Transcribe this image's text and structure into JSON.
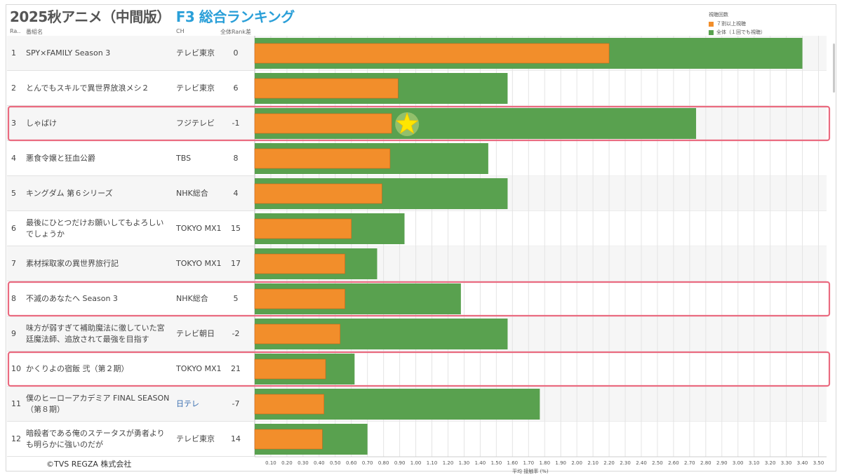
{
  "title": {
    "main": "2025秋アニメ（中間版）",
    "sub": "F3 総合ランキング"
  },
  "headers": {
    "rank": "Ra..",
    "name": "番組名",
    "ch": "CH",
    "diff": "全体Rank差"
  },
  "legend": {
    "title": "視聴回数",
    "items": [
      {
        "label": "７割以上視聴",
        "color": "#f28e2b"
      },
      {
        "label": "全体（１回でも視聴）",
        "color": "#59a14f"
      }
    ]
  },
  "copyright": "©TVS REGZA 株式会社",
  "chart_data": {
    "type": "bar",
    "title": "2025秋アニメ（中間版） F3 総合ランキング",
    "xlabel": "平均 接触率 (%)",
    "ylabel": "番組名",
    "xlim": [
      0,
      3.55
    ],
    "ticks": [
      "0.10",
      "0.20",
      "0.30",
      "0.40",
      "0.50",
      "0.60",
      "0.70",
      "0.80",
      "0.90",
      "1.00",
      "1.10",
      "1.20",
      "1.30",
      "1.40",
      "1.50",
      "1.60",
      "1.70",
      "1.80",
      "1.90",
      "2.00",
      "2.10",
      "2.20",
      "2.30",
      "2.40",
      "2.50",
      "2.60",
      "2.70",
      "2.80",
      "2.90",
      "3.00",
      "3.10",
      "3.20",
      "3.30",
      "3.40",
      "3.50"
    ],
    "categories": [
      "SPY×FAMILY Season 3",
      "とんでもスキルで異世界放浪メシ２",
      "しゃばけ",
      "悪食令嬢と狂血公爵",
      "キングダム 第６シリーズ",
      "最後にひとつだけお願いしてもよろしいでしょうか",
      "素材採取家の異世界旅行記",
      "不滅のあなたへ Season 3",
      "味方が弱すぎて補助魔法に徹していた宮廷魔法師、追放されて最強を目指す",
      "かくりよの宿飯 弐（第２期）",
      "僕のヒーローアカデミア FINAL SEASON（第８期）",
      "暗殺者である俺のステータスが勇者よりも明らかに強いのだが"
    ],
    "series": [
      {
        "name": "全体（１回でも視聴）",
        "color": "#59a14f",
        "values": [
          3.4,
          1.57,
          2.74,
          1.45,
          1.57,
          0.93,
          0.76,
          1.28,
          1.57,
          0.62,
          1.77,
          0.7
        ]
      },
      {
        "name": "７割以上視聴",
        "color": "#f28e2b",
        "values": [
          2.2,
          0.89,
          0.85,
          0.84,
          0.79,
          0.6,
          0.56,
          0.56,
          0.53,
          0.44,
          0.43,
          0.42
        ]
      }
    ],
    "annotations": {
      "star_row": 3,
      "highlight_rows": [
        3,
        8,
        10
      ]
    }
  },
  "rows": [
    {
      "rank": "1",
      "name": "SPY×FAMILY Season 3",
      "ch": "テレビ東京",
      "diff": "0"
    },
    {
      "rank": "2",
      "name": "とんでもスキルで異世界放浪メシ２",
      "ch": "テレビ東京",
      "diff": "6"
    },
    {
      "rank": "3",
      "name": "しゃばけ",
      "ch": "フジテレビ",
      "diff": "-1"
    },
    {
      "rank": "4",
      "name": "悪食令嬢と狂血公爵",
      "ch": "TBS",
      "diff": "8"
    },
    {
      "rank": "5",
      "name": "キングダム 第６シリーズ",
      "ch": "NHK総合",
      "diff": "4"
    },
    {
      "rank": "6",
      "name": "最後にひとつだけお願いしてもよろしいでしょうか",
      "ch": "TOKYO MX1",
      "diff": "15"
    },
    {
      "rank": "7",
      "name": "素材採取家の異世界旅行記",
      "ch": "TOKYO MX1",
      "diff": "17"
    },
    {
      "rank": "8",
      "name": "不滅のあなたへ Season 3",
      "ch": "NHK総合",
      "diff": "5"
    },
    {
      "rank": "9",
      "name": "味方が弱すぎて補助魔法に徹していた宮廷魔法師、追放されて最強を目指す",
      "ch": "テレビ朝日",
      "diff": "-2"
    },
    {
      "rank": "10",
      "name": "かくりよの宿飯 弐（第２期）",
      "ch": "TOKYO MX1",
      "diff": "21"
    },
    {
      "rank": "11",
      "name": "僕のヒーローアカデミア FINAL SEASON（第８期）",
      "ch": "日テレ",
      "diff": "-7"
    },
    {
      "rank": "12",
      "name": "暗殺者である俺のステータスが勇者よりも明らかに強いのだが",
      "ch": "テレビ東京",
      "diff": "14"
    }
  ]
}
